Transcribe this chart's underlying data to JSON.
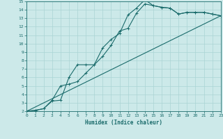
{
  "xlabel": "Humidex (Indice chaleur)",
  "xlim": [
    0,
    23
  ],
  "ylim": [
    2,
    15
  ],
  "xticks": [
    0,
    1,
    2,
    3,
    4,
    5,
    6,
    7,
    8,
    9,
    10,
    11,
    12,
    13,
    14,
    15,
    16,
    17,
    18,
    19,
    20,
    21,
    22,
    23
  ],
  "yticks": [
    2,
    3,
    4,
    5,
    6,
    7,
    8,
    9,
    10,
    11,
    12,
    13,
    14,
    15
  ],
  "bg_color": "#cce9e9",
  "grid_color": "#aad4d4",
  "line_color": "#1a6b6b",
  "line1_x": [
    0,
    1,
    2,
    3,
    4,
    5,
    6,
    7,
    8,
    9,
    10,
    11,
    12,
    13,
    14,
    15,
    16,
    17,
    18,
    19,
    20,
    21,
    22,
    23
  ],
  "line1_y": [
    2.0,
    2.1,
    2.3,
    3.2,
    3.3,
    6.0,
    7.5,
    7.5,
    7.5,
    9.5,
    10.5,
    11.2,
    13.4,
    14.2,
    15.2,
    14.5,
    14.3,
    14.2,
    13.5,
    13.7,
    13.7,
    13.7,
    13.5,
    13.3
  ],
  "line2_x": [
    0,
    1,
    2,
    3,
    4,
    5,
    6,
    7,
    8,
    9,
    10,
    11,
    12,
    13,
    14,
    15,
    16,
    17,
    18,
    19,
    20,
    21,
    22,
    23
  ],
  "line2_y": [
    2.0,
    2.1,
    2.3,
    3.3,
    5.0,
    5.2,
    5.5,
    6.5,
    7.5,
    8.5,
    9.8,
    11.5,
    11.8,
    13.6,
    14.7,
    14.5,
    14.3,
    14.2,
    13.5,
    13.7,
    13.7,
    13.7,
    13.5,
    13.3
  ],
  "line3_x": [
    0,
    23
  ],
  "line3_y": [
    2.0,
    13.3
  ]
}
